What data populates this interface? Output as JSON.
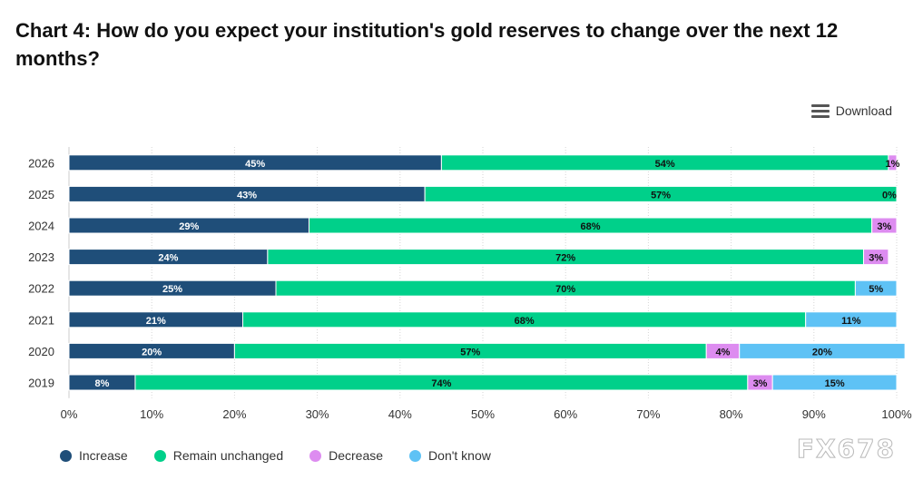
{
  "title": "Chart 4: How do you expect your institution's gold reserves to change over the next 12 months?",
  "download_label": "Download",
  "watermark": "FX678",
  "chart_data": {
    "type": "bar",
    "orientation": "horizontal",
    "stacked": true,
    "categories": [
      "2026",
      "2025",
      "2024",
      "2023",
      "2022",
      "2021",
      "2020",
      "2019"
    ],
    "series": [
      {
        "name": "Increase",
        "color": "#1f4e79",
        "values": [
          45,
          43,
          29,
          24,
          25,
          21,
          20,
          8
        ],
        "labels": [
          "45%",
          "43%",
          "29%",
          "24%",
          "25%",
          "21%",
          "20%",
          "8%"
        ]
      },
      {
        "name": "Remain unchanged",
        "color": "#00d08a",
        "values": [
          54,
          57,
          68,
          72,
          70,
          68,
          57,
          74
        ],
        "labels": [
          "54%",
          "57%",
          "68%",
          "72%",
          "70%",
          "68%",
          "57%",
          "74%"
        ]
      },
      {
        "name": "Decrease",
        "color": "#dd8cf0",
        "values": [
          1,
          0,
          3,
          3,
          0,
          0,
          4,
          3
        ],
        "labels": [
          "1%",
          "0%",
          "3%",
          "3%",
          "",
          "",
          "4%",
          "3%"
        ]
      },
      {
        "name": "Don't know",
        "color": "#5ec2f5",
        "values": [
          0,
          0,
          0,
          0,
          5,
          11,
          20,
          15
        ],
        "labels": [
          "",
          "",
          "",
          "",
          "5%",
          "11%",
          "20%",
          "15%"
        ]
      }
    ],
    "xlim": [
      0,
      100
    ],
    "x_ticks": [
      "0%",
      "10%",
      "20%",
      "30%",
      "40%",
      "50%",
      "60%",
      "70%",
      "80%",
      "90%",
      "100%"
    ],
    "grid": true,
    "legend_position": "bottom-left"
  }
}
